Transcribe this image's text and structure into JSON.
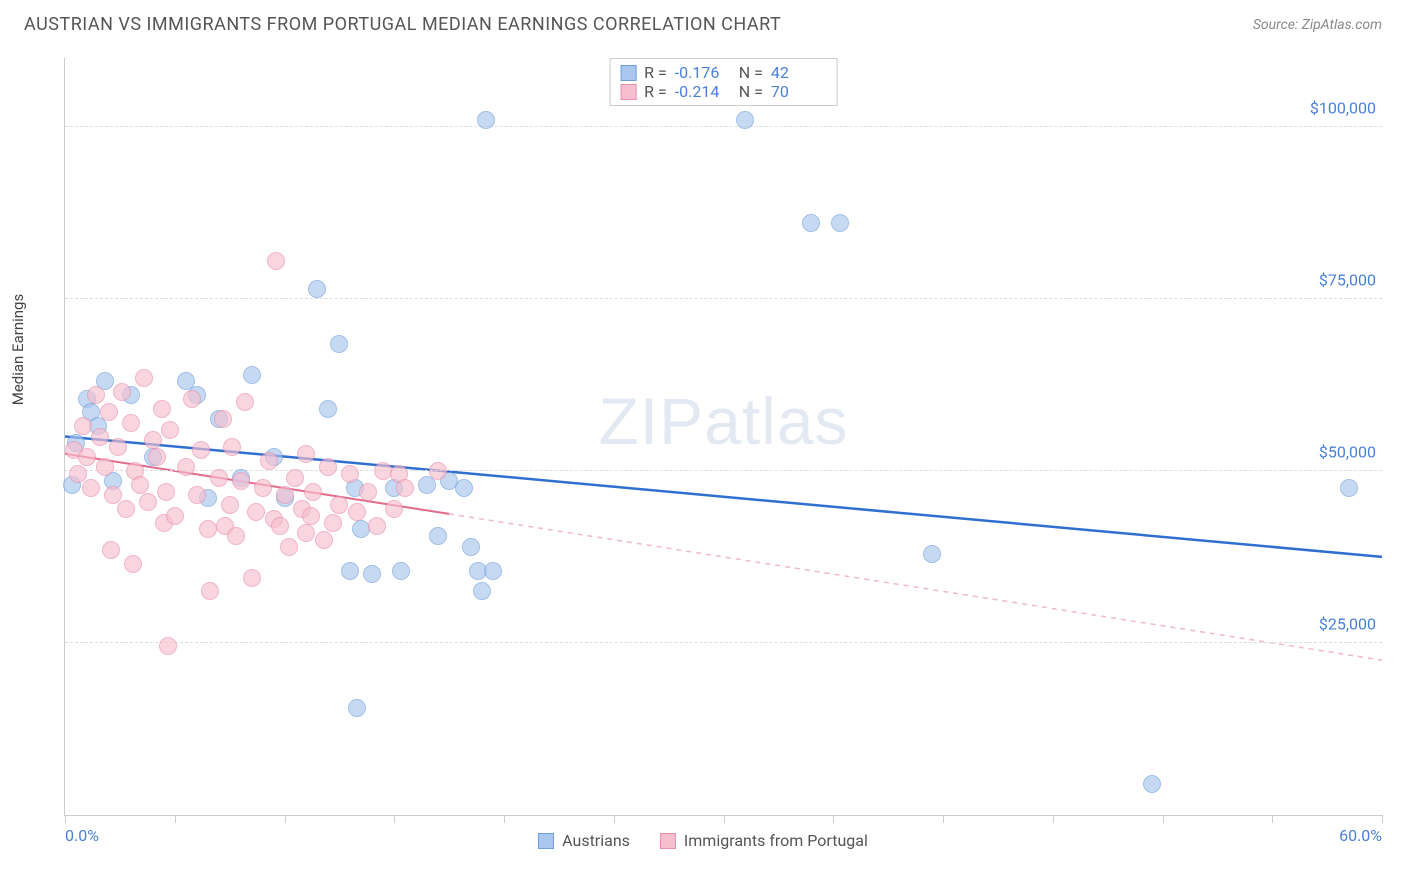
{
  "header": {
    "title": "AUSTRIAN VS IMMIGRANTS FROM PORTUGAL MEDIAN EARNINGS CORRELATION CHART",
    "source": "Source: ZipAtlas.com"
  },
  "watermark": {
    "text": "ZIPatlas"
  },
  "chart": {
    "type": "scatter",
    "ylabel": "Median Earnings",
    "xlim": [
      0,
      60
    ],
    "ylim": [
      0,
      110000
    ],
    "x_axis_labels": {
      "start": "0.0%",
      "end": "60.0%"
    },
    "ygrid": [
      {
        "value": 25000,
        "label": "$25,000"
      },
      {
        "value": 50000,
        "label": "$50,000"
      },
      {
        "value": 75000,
        "label": "$75,000"
      },
      {
        "value": 100000,
        "label": "$100,000"
      }
    ],
    "xtick_positions": [
      0,
      5,
      10,
      15,
      20,
      25,
      30,
      35,
      40,
      45,
      50,
      55,
      60
    ],
    "background_color": "#ffffff",
    "grid_color": "#dddddd",
    "axis_color": "#cccccc",
    "marker_radius": 9,
    "marker_opacity": 0.35,
    "series": [
      {
        "name": "Austrians",
        "fill": "#a9c6ee",
        "stroke": "#6f9edb",
        "R": "-0.176",
        "N": "42",
        "trend": {
          "x1": 0,
          "y1": 55000,
          "x2": 60,
          "y2": 37500,
          "solid_until_x": 60,
          "color": "#2f6fd0",
          "width": 2.5
        },
        "points": [
          [
            0.3,
            48000
          ],
          [
            0.5,
            54000
          ],
          [
            1.0,
            60500
          ],
          [
            1.2,
            58500
          ],
          [
            1.5,
            56500
          ],
          [
            1.8,
            63000
          ],
          [
            2.2,
            48500
          ],
          [
            3.0,
            61000
          ],
          [
            4.0,
            52000
          ],
          [
            5.5,
            63000
          ],
          [
            6.0,
            61000
          ],
          [
            6.5,
            46000
          ],
          [
            7.0,
            57500
          ],
          [
            8.0,
            49000
          ],
          [
            8.5,
            64000
          ],
          [
            9.5,
            52000
          ],
          [
            10.0,
            46000
          ],
          [
            11.5,
            76500
          ],
          [
            12.0,
            59000
          ],
          [
            12.5,
            68500
          ],
          [
            13.0,
            35500
          ],
          [
            13.2,
            47500
          ],
          [
            13.3,
            15500
          ],
          [
            13.5,
            41500
          ],
          [
            14.0,
            35000
          ],
          [
            15.0,
            47500
          ],
          [
            15.3,
            35500
          ],
          [
            16.5,
            48000
          ],
          [
            17.0,
            40500
          ],
          [
            17.5,
            48500
          ],
          [
            18.2,
            47500
          ],
          [
            18.5,
            39000
          ],
          [
            18.8,
            35500
          ],
          [
            19.0,
            32500
          ],
          [
            19.2,
            101000
          ],
          [
            19.5,
            35500
          ],
          [
            31.0,
            101000
          ],
          [
            34.0,
            86000
          ],
          [
            35.3,
            86000
          ],
          [
            39.5,
            38000
          ],
          [
            49.5,
            4500
          ],
          [
            58.5,
            47500
          ]
        ]
      },
      {
        "name": "Immigrants from Portugal",
        "fill": "#f6bfcf",
        "stroke": "#e98fab",
        "R": "-0.214",
        "N": "70",
        "trend": {
          "x1": 0,
          "y1": 52500,
          "x2": 60,
          "y2": 22500,
          "solid_until_x": 17.5,
          "color": "#e26b8b",
          "width": 2,
          "dash_color": "#f0b9c6"
        },
        "points": [
          [
            0.4,
            53000
          ],
          [
            0.6,
            49500
          ],
          [
            0.8,
            56500
          ],
          [
            1.0,
            52000
          ],
          [
            1.2,
            47500
          ],
          [
            1.4,
            61000
          ],
          [
            1.6,
            55000
          ],
          [
            1.8,
            50500
          ],
          [
            2.0,
            58500
          ],
          [
            2.1,
            38500
          ],
          [
            2.2,
            46500
          ],
          [
            2.4,
            53500
          ],
          [
            2.6,
            61500
          ],
          [
            2.8,
            44500
          ],
          [
            3.0,
            57000
          ],
          [
            3.1,
            36500
          ],
          [
            3.2,
            50000
          ],
          [
            3.4,
            48000
          ],
          [
            3.6,
            63500
          ],
          [
            3.8,
            45500
          ],
          [
            4.0,
            54500
          ],
          [
            4.2,
            52000
          ],
          [
            4.4,
            59000
          ],
          [
            4.5,
            42500
          ],
          [
            4.6,
            47000
          ],
          [
            4.7,
            24500
          ],
          [
            4.8,
            56000
          ],
          [
            5.0,
            43500
          ],
          [
            5.5,
            50500
          ],
          [
            5.8,
            60500
          ],
          [
            6.0,
            46500
          ],
          [
            6.2,
            53000
          ],
          [
            6.5,
            41500
          ],
          [
            6.6,
            32500
          ],
          [
            7.0,
            49000
          ],
          [
            7.2,
            57500
          ],
          [
            7.3,
            42000
          ],
          [
            7.5,
            45000
          ],
          [
            7.6,
            53500
          ],
          [
            7.8,
            40500
          ],
          [
            8.0,
            48500
          ],
          [
            8.2,
            60000
          ],
          [
            8.5,
            34500
          ],
          [
            8.7,
            44000
          ],
          [
            9.0,
            47500
          ],
          [
            9.3,
            51500
          ],
          [
            9.5,
            43000
          ],
          [
            9.6,
            80500
          ],
          [
            9.8,
            42000
          ],
          [
            10.0,
            46500
          ],
          [
            10.2,
            39000
          ],
          [
            10.5,
            49000
          ],
          [
            10.8,
            44500
          ],
          [
            11.0,
            41000
          ],
          [
            11.0,
            52500
          ],
          [
            11.2,
            43500
          ],
          [
            11.3,
            47000
          ],
          [
            11.8,
            40000
          ],
          [
            12.0,
            50500
          ],
          [
            12.2,
            42500
          ],
          [
            12.5,
            45000
          ],
          [
            13.0,
            49500
          ],
          [
            13.3,
            44000
          ],
          [
            13.8,
            47000
          ],
          [
            14.2,
            42000
          ],
          [
            14.5,
            50000
          ],
          [
            15.0,
            44500
          ],
          [
            15.2,
            49500
          ],
          [
            15.5,
            47500
          ],
          [
            17.0,
            50000
          ]
        ]
      }
    ],
    "bottom_legend": [
      {
        "label": "Austrians",
        "fill": "#a9c6ee",
        "stroke": "#6f9edb"
      },
      {
        "label": "Immigrants from Portugal",
        "fill": "#f6bfcf",
        "stroke": "#e98fab"
      }
    ]
  }
}
